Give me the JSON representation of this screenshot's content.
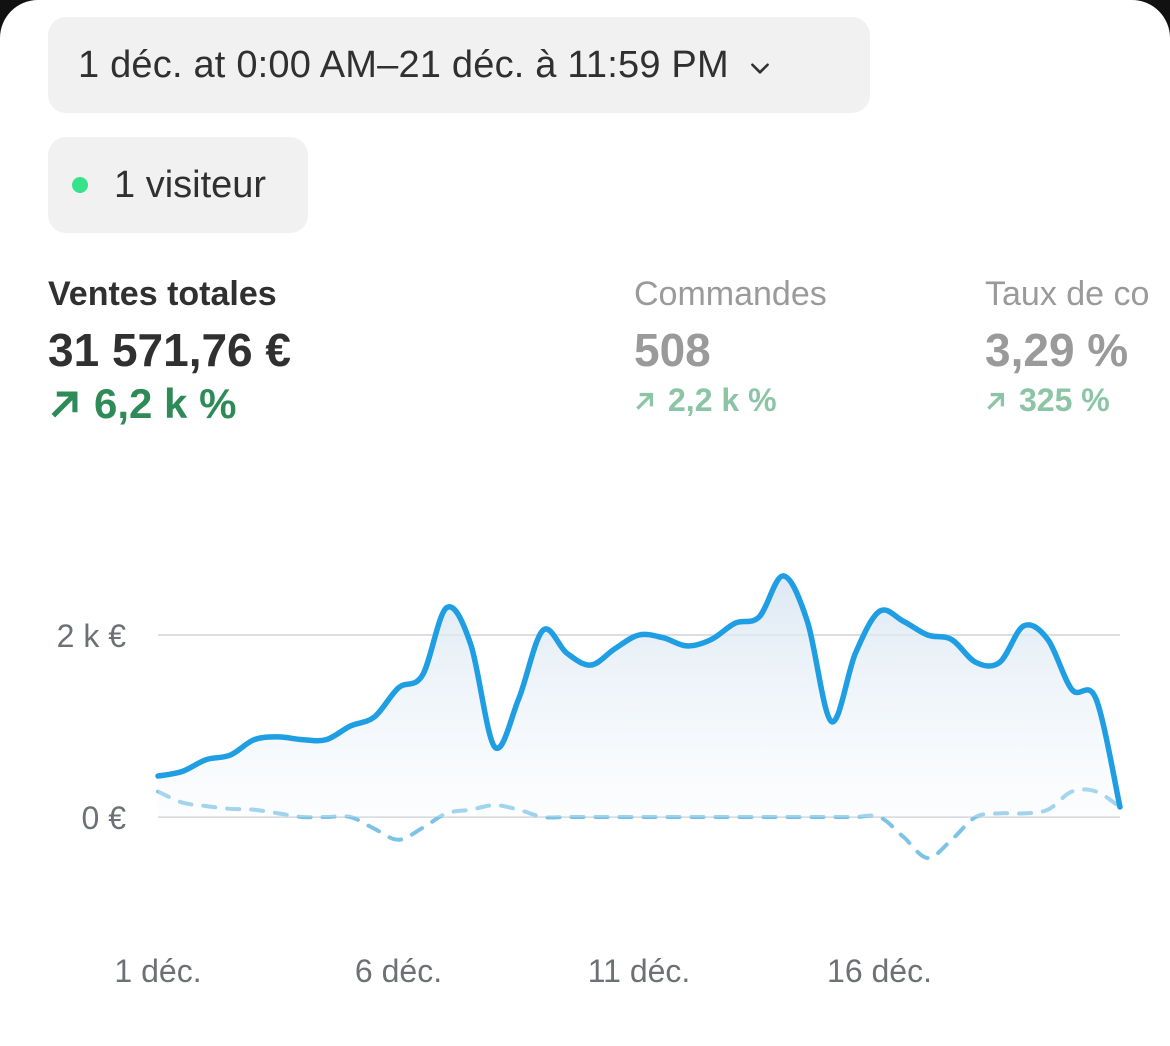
{
  "date_range": {
    "label": "1 déc. at 0:00 AM–21 déc. à 11:59 PM",
    "icon": "chevron-down-icon"
  },
  "visitors": {
    "label": "1 visiteur",
    "dot_color": "#36e38a"
  },
  "metrics": [
    {
      "label": "Ventes totales",
      "value": "31 571,76 €",
      "delta": "6,2 k %",
      "active": true
    },
    {
      "label": "Commandes",
      "value": "508",
      "delta": "2,2 k %",
      "active": false
    },
    {
      "label": "Taux de co",
      "value": "3,29 %",
      "delta": "325 %",
      "active": false
    }
  ],
  "colors": {
    "line": "#1f9ee3",
    "comparison": "#7cc3e6",
    "positive": "#2e8b57",
    "positive_muted": "#8cc4a6"
  },
  "chart_data": {
    "type": "line",
    "x_ticks": [
      "1 déc.",
      "6 déc.",
      "11 déc.",
      "16 déc."
    ],
    "y_ticks": [
      "2 k €",
      "0 €"
    ],
    "y_tick_values": [
      2000,
      0
    ],
    "ylim": [
      -600,
      3000
    ],
    "grid": true,
    "series": [
      {
        "style": "solid-area",
        "x": [
          1,
          1.5,
          2,
          2.5,
          3,
          3.5,
          4,
          4.5,
          5,
          5.5,
          6,
          6.5,
          7,
          7.5,
          8,
          8.5,
          9,
          9.5,
          10,
          10.5,
          11,
          11.5,
          12,
          12.5,
          13,
          13.5,
          14,
          14.5,
          15,
          15.5,
          16,
          16.5,
          17,
          17.5,
          18,
          18.5,
          19,
          19.5,
          20,
          20.5,
          21
        ],
        "values": [
          450,
          500,
          630,
          680,
          850,
          880,
          850,
          850,
          1000,
          1100,
          1420,
          1560,
          2300,
          1900,
          770,
          1300,
          2050,
          1800,
          1670,
          1850,
          2000,
          1970,
          1880,
          1950,
          2130,
          2200,
          2650,
          2150,
          1050,
          1800,
          2260,
          2150,
          2000,
          1950,
          1700,
          1700,
          2100,
          1950,
          1400,
          1300,
          110
        ]
      },
      {
        "style": "dashed",
        "x": [
          1,
          1.5,
          2,
          2.5,
          3,
          3.5,
          4,
          4.5,
          5,
          5.5,
          6,
          6.5,
          7,
          7.5,
          8,
          8.5,
          9,
          9.5,
          10,
          10.5,
          11,
          11.5,
          12,
          12.5,
          13,
          13.5,
          14,
          14.5,
          15,
          15.5,
          16,
          16.5,
          17,
          17.5,
          18,
          18.5,
          19,
          19.5,
          20,
          20.5,
          21
        ],
        "values": [
          280,
          160,
          120,
          90,
          80,
          40,
          0,
          0,
          0,
          -130,
          -250,
          -120,
          40,
          80,
          130,
          80,
          0,
          0,
          0,
          0,
          0,
          0,
          0,
          0,
          0,
          0,
          0,
          0,
          0,
          0,
          0,
          -220,
          -450,
          -250,
          0,
          40,
          40,
          80,
          280,
          280,
          110
        ]
      }
    ]
  }
}
